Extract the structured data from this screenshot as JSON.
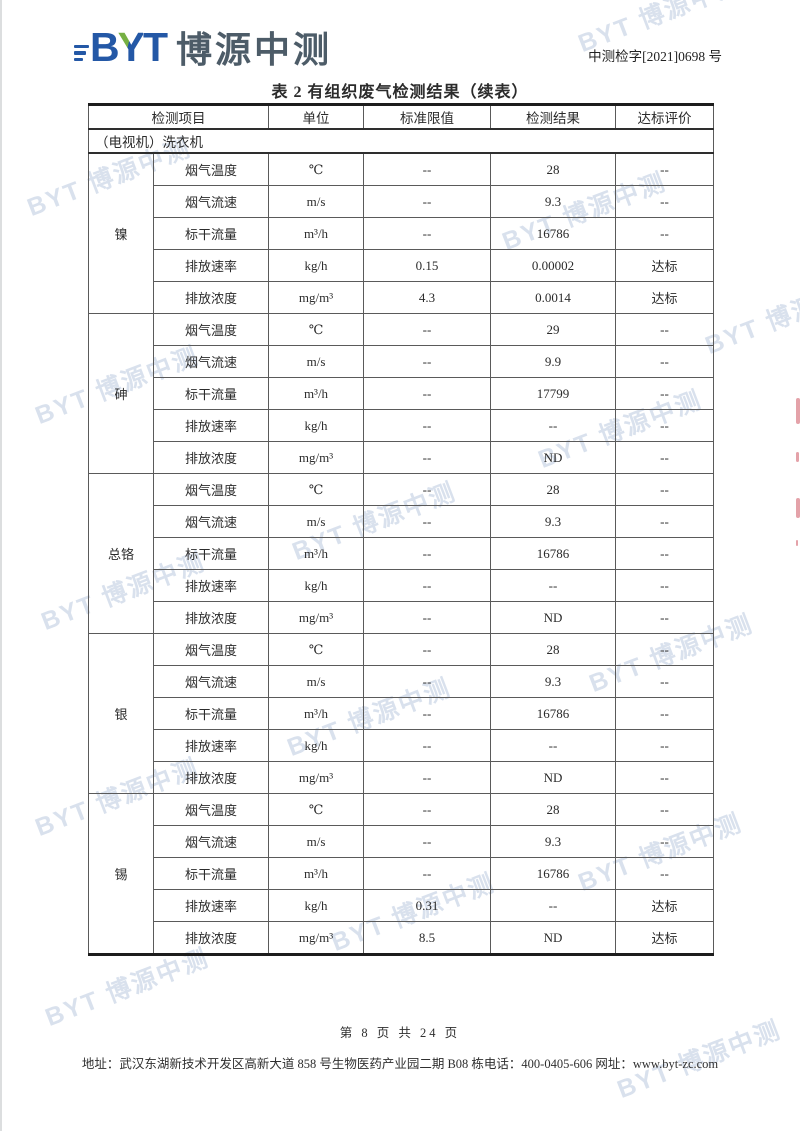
{
  "brand": {
    "abbr_letters": [
      "B",
      "Y",
      "T"
    ],
    "name_cn": "博源中测",
    "blue": "#2458a6",
    "green": "#76b043",
    "slate": "#4d5c68"
  },
  "doc_number": "中测检字[2021]0698 号",
  "title": "表 2 有组织废气检测结果（续表）",
  "watermark_text": "BYT 博源中测",
  "table": {
    "columns": [
      "检测项目",
      "单位",
      "标准限值",
      "检测结果",
      "达标评价"
    ],
    "section_label": "（电视机）洗衣机",
    "groups": [
      {
        "name": "镍",
        "rows": [
          [
            "烟气温度",
            "℃",
            "--",
            "28",
            "--"
          ],
          [
            "烟气流速",
            "m/s",
            "--",
            "9.3",
            "--"
          ],
          [
            "标干流量",
            "m³/h",
            "--",
            "16786",
            "--"
          ],
          [
            "排放速率",
            "kg/h",
            "0.15",
            "0.00002",
            "达标"
          ],
          [
            "排放浓度",
            "mg/m³",
            "4.3",
            "0.0014",
            "达标"
          ]
        ]
      },
      {
        "name": "砷",
        "rows": [
          [
            "烟气温度",
            "℃",
            "--",
            "29",
            "--"
          ],
          [
            "烟气流速",
            "m/s",
            "--",
            "9.9",
            "--"
          ],
          [
            "标干流量",
            "m³/h",
            "--",
            "17799",
            "--"
          ],
          [
            "排放速率",
            "kg/h",
            "--",
            "--",
            "--"
          ],
          [
            "排放浓度",
            "mg/m³",
            "--",
            "ND",
            "--"
          ]
        ]
      },
      {
        "name": "总铬",
        "rows": [
          [
            "烟气温度",
            "℃",
            "--",
            "28",
            "--"
          ],
          [
            "烟气流速",
            "m/s",
            "--",
            "9.3",
            "--"
          ],
          [
            "标干流量",
            "m³/h",
            "--",
            "16786",
            "--"
          ],
          [
            "排放速率",
            "kg/h",
            "--",
            "--",
            "--"
          ],
          [
            "排放浓度",
            "mg/m³",
            "--",
            "ND",
            "--"
          ]
        ]
      },
      {
        "name": "银",
        "rows": [
          [
            "烟气温度",
            "℃",
            "--",
            "28",
            "--"
          ],
          [
            "烟气流速",
            "m/s",
            "--",
            "9.3",
            "--"
          ],
          [
            "标干流量",
            "m³/h",
            "--",
            "16786",
            "--"
          ],
          [
            "排放速率",
            "kg/h",
            "--",
            "--",
            "--"
          ],
          [
            "排放浓度",
            "mg/m³",
            "--",
            "ND",
            "--"
          ]
        ]
      },
      {
        "name": "锡",
        "rows": [
          [
            "烟气温度",
            "℃",
            "--",
            "28",
            "--"
          ],
          [
            "烟气流速",
            "m/s",
            "--",
            "9.3",
            "--"
          ],
          [
            "标干流量",
            "m³/h",
            "--",
            "16786",
            "--"
          ],
          [
            "排放速率",
            "kg/h",
            "0.31",
            "--",
            "达标"
          ],
          [
            "排放浓度",
            "mg/m³",
            "8.5",
            "ND",
            "达标"
          ]
        ]
      }
    ]
  },
  "footer": {
    "page_info": "第 8 页 共 24 页",
    "address": "地址：武汉东湖新技术开发区高新大道 858 号生物医药产业园二期 B08 栋电话：400-0405-606 网址：www.byt-zc.com"
  }
}
